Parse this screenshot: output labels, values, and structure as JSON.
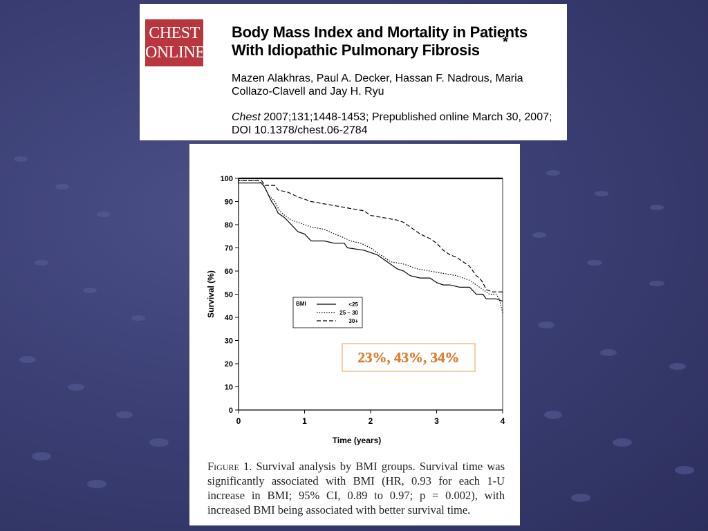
{
  "logo": {
    "line1": "CHEST",
    "line2": "ONLINE"
  },
  "article": {
    "title": "Body Mass Index and Mortality in Patients With Idiopathic Pulmonary Fibrosis",
    "asterisk": "*",
    "authors": "Mazen Alakhras, Paul A. Decker, Hassan F. Nadrous, Maria Collazo-Clavell and Jay H. Ryu",
    "journal": "Chest",
    "citation_rest": " 2007;131;1448-1453; Prepublished online March 30, 2007; DOI 10.1378/chest.06-2784"
  },
  "figure": {
    "label": "Figure 1.",
    "caption": " Survival analysis by BMI groups. Survival time was significantly associated with BMI (HR, 0.93 for each 1-U increase in BMI; 95% CI, 0.89 to 0.97; p = 0.002), with increased BMI being associated with better survival time."
  },
  "colors": {
    "annotation": "#e8822a",
    "annotation_border": "#e8a04a",
    "logo_bg": "#b8363e"
  },
  "chart_data": {
    "type": "line",
    "xlabel": "Time (years)",
    "ylabel": "Survival (%)",
    "xlim": [
      0,
      4
    ],
    "ylim": [
      0,
      100
    ],
    "xticks": [
      0,
      1,
      2,
      3,
      4
    ],
    "yticks": [
      0,
      10,
      20,
      30,
      40,
      50,
      60,
      70,
      80,
      90,
      100
    ],
    "legend_title": "BMI",
    "legend_position": "middle-left",
    "annotation": "23%, 43%, 34%",
    "series": [
      {
        "name": "<25",
        "style": "solid",
        "points": [
          [
            0,
            100
          ],
          [
            0,
            98
          ],
          [
            0.35,
            98
          ],
          [
            0.4,
            96
          ],
          [
            0.45,
            93
          ],
          [
            0.5,
            90
          ],
          [
            0.55,
            88
          ],
          [
            0.6,
            85
          ],
          [
            0.7,
            83
          ],
          [
            0.8,
            80
          ],
          [
            0.9,
            77
          ],
          [
            1.0,
            76
          ],
          [
            1.1,
            73
          ],
          [
            1.3,
            73
          ],
          [
            1.45,
            72
          ],
          [
            1.6,
            72
          ],
          [
            1.65,
            70
          ],
          [
            1.9,
            69
          ],
          [
            2.0,
            68
          ],
          [
            2.1,
            67
          ],
          [
            2.2,
            65
          ],
          [
            2.3,
            63
          ],
          [
            2.4,
            61
          ],
          [
            2.5,
            60
          ],
          [
            2.6,
            58
          ],
          [
            2.75,
            57
          ],
          [
            2.9,
            57
          ],
          [
            3.0,
            55
          ],
          [
            3.1,
            54
          ],
          [
            3.2,
            54
          ],
          [
            3.35,
            53
          ],
          [
            3.5,
            53
          ],
          [
            3.6,
            50
          ],
          [
            3.7,
            50
          ],
          [
            3.75,
            48
          ],
          [
            3.9,
            48
          ],
          [
            4.0,
            47
          ]
        ]
      },
      {
        "name": "25 – 30",
        "style": "dotted",
        "points": [
          [
            0,
            100
          ],
          [
            0,
            99
          ],
          [
            0.3,
            99
          ],
          [
            0.38,
            97
          ],
          [
            0.45,
            93
          ],
          [
            0.55,
            90
          ],
          [
            0.62,
            86
          ],
          [
            0.7,
            84
          ],
          [
            0.8,
            82
          ],
          [
            0.9,
            81
          ],
          [
            1.0,
            80
          ],
          [
            1.1,
            79
          ],
          [
            1.3,
            78
          ],
          [
            1.45,
            76
          ],
          [
            1.55,
            75
          ],
          [
            1.7,
            73
          ],
          [
            1.85,
            72
          ],
          [
            2.0,
            70
          ],
          [
            2.1,
            68
          ],
          [
            2.2,
            66
          ],
          [
            2.3,
            64
          ],
          [
            2.5,
            63
          ],
          [
            2.7,
            61
          ],
          [
            2.9,
            60
          ],
          [
            3.1,
            59
          ],
          [
            3.3,
            58
          ],
          [
            3.5,
            56
          ],
          [
            3.6,
            54
          ],
          [
            3.7,
            52
          ],
          [
            3.8,
            50
          ],
          [
            3.9,
            50
          ],
          [
            3.95,
            48
          ],
          [
            4.0,
            42
          ]
        ]
      },
      {
        "name": "30+",
        "style": "dashed",
        "points": [
          [
            0,
            100
          ],
          [
            0,
            99
          ],
          [
            0.35,
            99
          ],
          [
            0.4,
            97
          ],
          [
            0.55,
            97
          ],
          [
            0.6,
            95
          ],
          [
            0.75,
            94
          ],
          [
            0.9,
            92
          ],
          [
            1.0,
            91
          ],
          [
            1.1,
            90
          ],
          [
            1.3,
            89
          ],
          [
            1.5,
            88
          ],
          [
            1.7,
            87
          ],
          [
            1.9,
            86
          ],
          [
            2.0,
            84
          ],
          [
            2.2,
            83
          ],
          [
            2.4,
            82
          ],
          [
            2.5,
            81
          ],
          [
            2.6,
            79
          ],
          [
            2.75,
            76
          ],
          [
            2.9,
            74
          ],
          [
            3.0,
            72
          ],
          [
            3.1,
            69
          ],
          [
            3.2,
            67
          ],
          [
            3.3,
            66
          ],
          [
            3.4,
            64
          ],
          [
            3.5,
            62
          ],
          [
            3.55,
            60
          ],
          [
            3.6,
            58
          ],
          [
            3.65,
            57
          ],
          [
            3.7,
            55
          ],
          [
            3.75,
            52
          ],
          [
            3.85,
            51
          ],
          [
            4.0,
            51
          ]
        ]
      }
    ]
  }
}
